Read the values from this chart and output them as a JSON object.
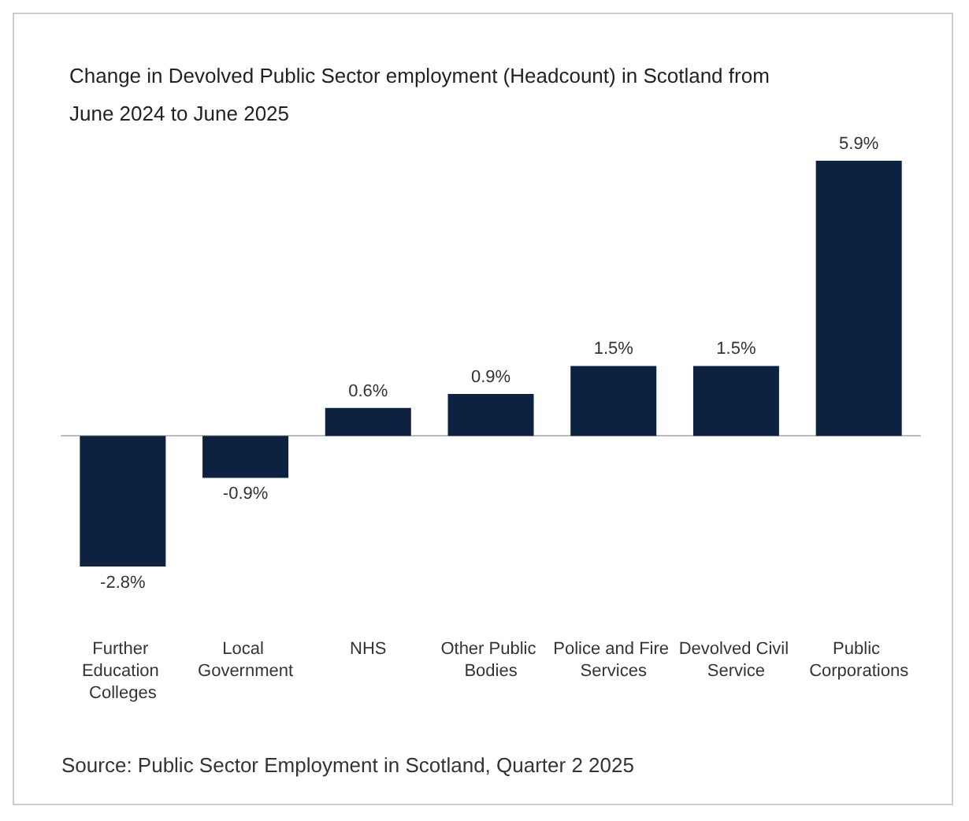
{
  "chart_data": {
    "type": "bar",
    "title": "Change in Devolved Public Sector employment (Headcount) in Scotland from June 2024 to June 2025",
    "categories": [
      "Further Education Colleges",
      "Local Government",
      "NHS",
      "Other Public Bodies",
      "Police and Fire Services",
      "Devolved Civil Service",
      "Public Corporations"
    ],
    "values": [
      -2.8,
      -0.9,
      0.6,
      0.9,
      1.5,
      1.5,
      5.9
    ],
    "value_labels": [
      "-2.8%",
      "-0.9%",
      "0.6%",
      "0.9%",
      "1.5%",
      "1.5%",
      "5.9%"
    ],
    "color": "#0d2240",
    "annotations": [
      "Source: Public Sector Employment in Scotland, Quarter 2 2025"
    ]
  }
}
